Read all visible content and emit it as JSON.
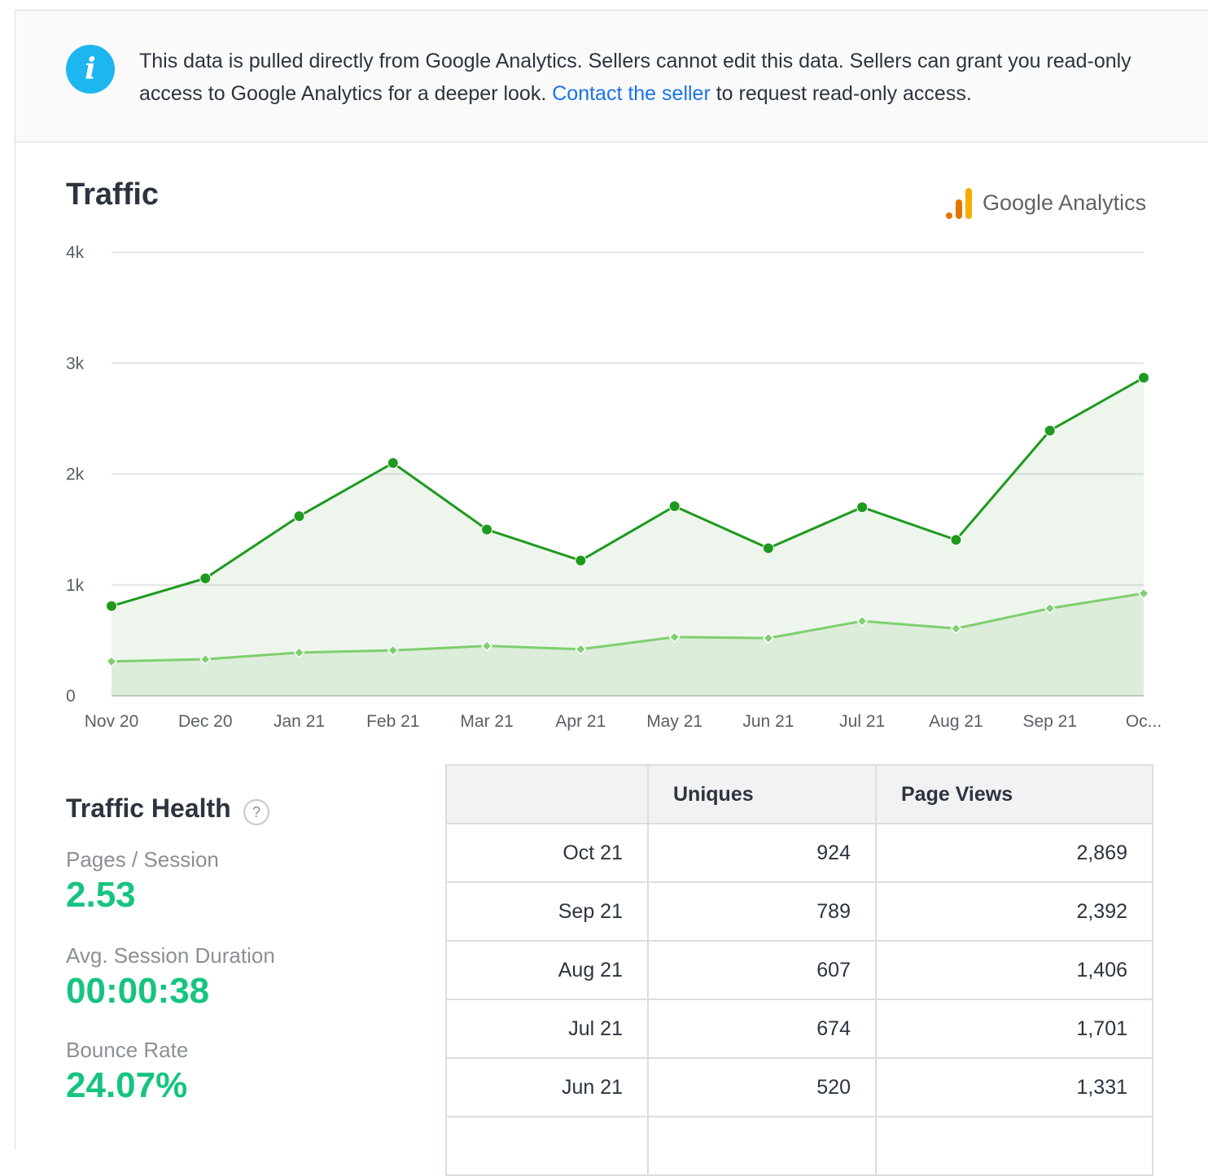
{
  "notice": {
    "icon": "info-icon",
    "text_before": "This data is pulled directly from Google Analytics. Sellers cannot edit this data. Sellers can grant you read-only access to Google Analytics for a deeper look. ",
    "link": "Contact the seller",
    "text_after": " to request read-only access."
  },
  "traffic": {
    "title": "Traffic",
    "brand": "Google Analytics",
    "brand_icon": "google-analytics-icon"
  },
  "chart_data": {
    "type": "area",
    "categories": [
      "Nov 20",
      "Dec 20",
      "Jan 21",
      "Feb 21",
      "Mar 21",
      "Apr 21",
      "May 21",
      "Jun 21",
      "Jul 21",
      "Aug 21",
      "Sep 21",
      "Oc..."
    ],
    "y_ticks": [
      "0",
      "1k",
      "2k",
      "3k",
      "4k"
    ],
    "ylim": [
      0,
      4000
    ],
    "grid": true,
    "series": [
      {
        "values": [
          810,
          1060,
          1620,
          2100,
          1500,
          1220,
          1710,
          1331,
          1701,
          1406,
          2392,
          2869
        ],
        "color": "#1e9a1e",
        "marker": "circle"
      },
      {
        "values": [
          310,
          330,
          390,
          410,
          450,
          420,
          530,
          520,
          674,
          607,
          789,
          924
        ],
        "color": "#7fcf6f",
        "marker": "diamond"
      }
    ]
  },
  "health": {
    "title": "Traffic Health",
    "help_icon": "?",
    "metrics": [
      {
        "label": "Pages / Session",
        "value": "2.53"
      },
      {
        "label": "Avg. Session Duration",
        "value": "00:00:38"
      },
      {
        "label": "Bounce Rate",
        "value": "24.07%"
      }
    ]
  },
  "table": {
    "headers": [
      "",
      "Uniques",
      "Page Views"
    ],
    "rows": [
      [
        "Oct 21",
        "924",
        "2,869"
      ],
      [
        "Sep 21",
        "789",
        "2,392"
      ],
      [
        "Aug 21",
        "607",
        "1,406"
      ],
      [
        "Jul 21",
        "674",
        "1,701"
      ],
      [
        "Jun 21",
        "520",
        "1,331"
      ]
    ]
  }
}
